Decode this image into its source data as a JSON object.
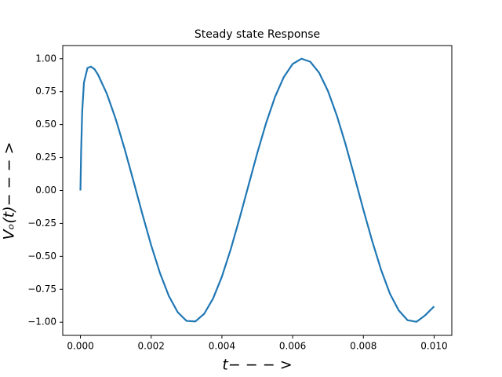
{
  "chart_data": {
    "type": "line",
    "title": "Steady state Response",
    "xlabel": "t− − − >",
    "ylabel": "Vₒ(t)− − − >",
    "x": [
      0,
      2e-05,
      5e-05,
      0.0001,
      0.0002,
      0.0003,
      0.0004,
      0.0005,
      0.00075,
      0.001,
      0.00125,
      0.0015,
      0.00175,
      0.002,
      0.00225,
      0.0025,
      0.00275,
      0.003,
      0.00325,
      0.0035,
      0.00375,
      0.004,
      0.00425,
      0.0045,
      0.00475,
      0.005,
      0.00525,
      0.0055,
      0.00575,
      0.006,
      0.00625,
      0.0065,
      0.00675,
      0.007,
      0.00725,
      0.0075,
      0.00775,
      0.008,
      0.00825,
      0.0085,
      0.00875,
      0.009,
      0.00925,
      0.0095,
      0.00975,
      0.01
    ],
    "series": [
      {
        "name": "Vo",
        "color": "#1f77b4",
        "values": [
          0,
          0.3,
          0.6,
          0.82,
          0.93,
          0.94,
          0.92,
          0.878,
          0.732,
          0.54,
          0.315,
          0.071,
          -0.178,
          -0.416,
          -0.628,
          -0.801,
          -0.924,
          -0.99,
          -0.994,
          -0.936,
          -0.82,
          -0.654,
          -0.446,
          -0.211,
          0.037,
          0.284,
          0.512,
          0.709,
          0.861,
          0.96,
          1.0,
          0.977,
          0.893,
          0.754,
          0.568,
          0.347,
          0.103,
          -0.146,
          -0.385,
          -0.602,
          -0.783,
          -0.911,
          -0.985,
          -0.997,
          -0.947,
          -0.88
        ]
      }
    ],
    "xlim": [
      -0.0005,
      0.0105
    ],
    "ylim": [
      -1.1,
      1.1
    ],
    "xticks": [
      {
        "value": 0,
        "label": "0.000"
      },
      {
        "value": 0.002,
        "label": "0.002"
      },
      {
        "value": 0.004,
        "label": "0.004"
      },
      {
        "value": 0.006,
        "label": "0.006"
      },
      {
        "value": 0.008,
        "label": "0.008"
      },
      {
        "value": 0.01,
        "label": "0.010"
      }
    ],
    "yticks": [
      {
        "value": -1,
        "label": "−1.00"
      },
      {
        "value": -0.75,
        "label": "−0.75"
      },
      {
        "value": -0.5,
        "label": "−0.50"
      },
      {
        "value": -0.25,
        "label": "−0.25"
      },
      {
        "value": 0,
        "label": "0.00"
      },
      {
        "value": 0.25,
        "label": "0.25"
      },
      {
        "value": 0.5,
        "label": "0.50"
      },
      {
        "value": 0.75,
        "label": "0.75"
      },
      {
        "value": 1,
        "label": "1.00"
      }
    ],
    "grid": false
  }
}
